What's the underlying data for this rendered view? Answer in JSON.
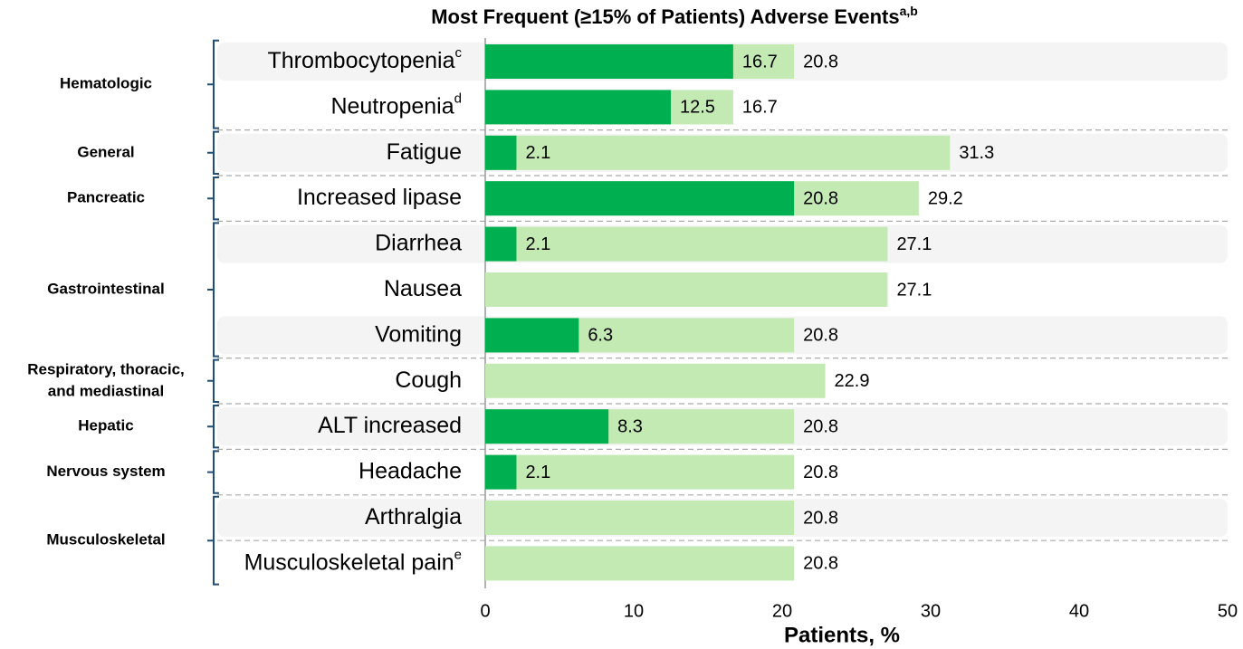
{
  "chart_data": {
    "type": "bar",
    "orientation": "horizontal",
    "title": "Most Frequent (≥15% of Patients) Adverse Events",
    "title_note": "a,b",
    "categories": [
      "Thrombocytopenia",
      "Neutropenia",
      "Fatigue",
      "Increased lipase",
      "Diarrhea",
      "Nausea",
      "Vomiting",
      "Cough",
      "ALT increased",
      "Headache",
      "Arthralgia",
      "Musculoskeletal pain"
    ],
    "category_notes": [
      "c",
      "d",
      null,
      null,
      null,
      null,
      null,
      null,
      null,
      null,
      null,
      "e"
    ],
    "groups": [
      {
        "label": [
          "Hematologic"
        ],
        "size": 2
      },
      {
        "label": [
          "General"
        ],
        "size": 1
      },
      {
        "label": [
          "Pancreatic"
        ],
        "size": 1
      },
      {
        "label": [
          "Gastrointestinal"
        ],
        "size": 3
      },
      {
        "label": [
          "Respiratory, thoracic,",
          "and mediastinal"
        ],
        "size": 1
      },
      {
        "label": [
          "Hepatic"
        ],
        "size": 1
      },
      {
        "label": [
          "Nervous system"
        ],
        "size": 1
      },
      {
        "label": [
          "Musculoskeletal"
        ],
        "size": 2
      }
    ],
    "series": [
      {
        "color": "#c4eab4",
        "values": [
          20.8,
          16.7,
          31.3,
          29.2,
          27.1,
          27.1,
          20.8,
          22.9,
          20.8,
          20.8,
          20.8,
          20.8
        ]
      },
      {
        "color": "#00b050",
        "values": [
          16.7,
          12.5,
          2.1,
          20.8,
          2.1,
          null,
          6.3,
          null,
          8.3,
          2.1,
          null,
          null
        ]
      }
    ],
    "xlim": [
      0,
      50
    ],
    "xticks": [
      0,
      10,
      20,
      30,
      40,
      50
    ],
    "xlabel": "Patients, %"
  }
}
